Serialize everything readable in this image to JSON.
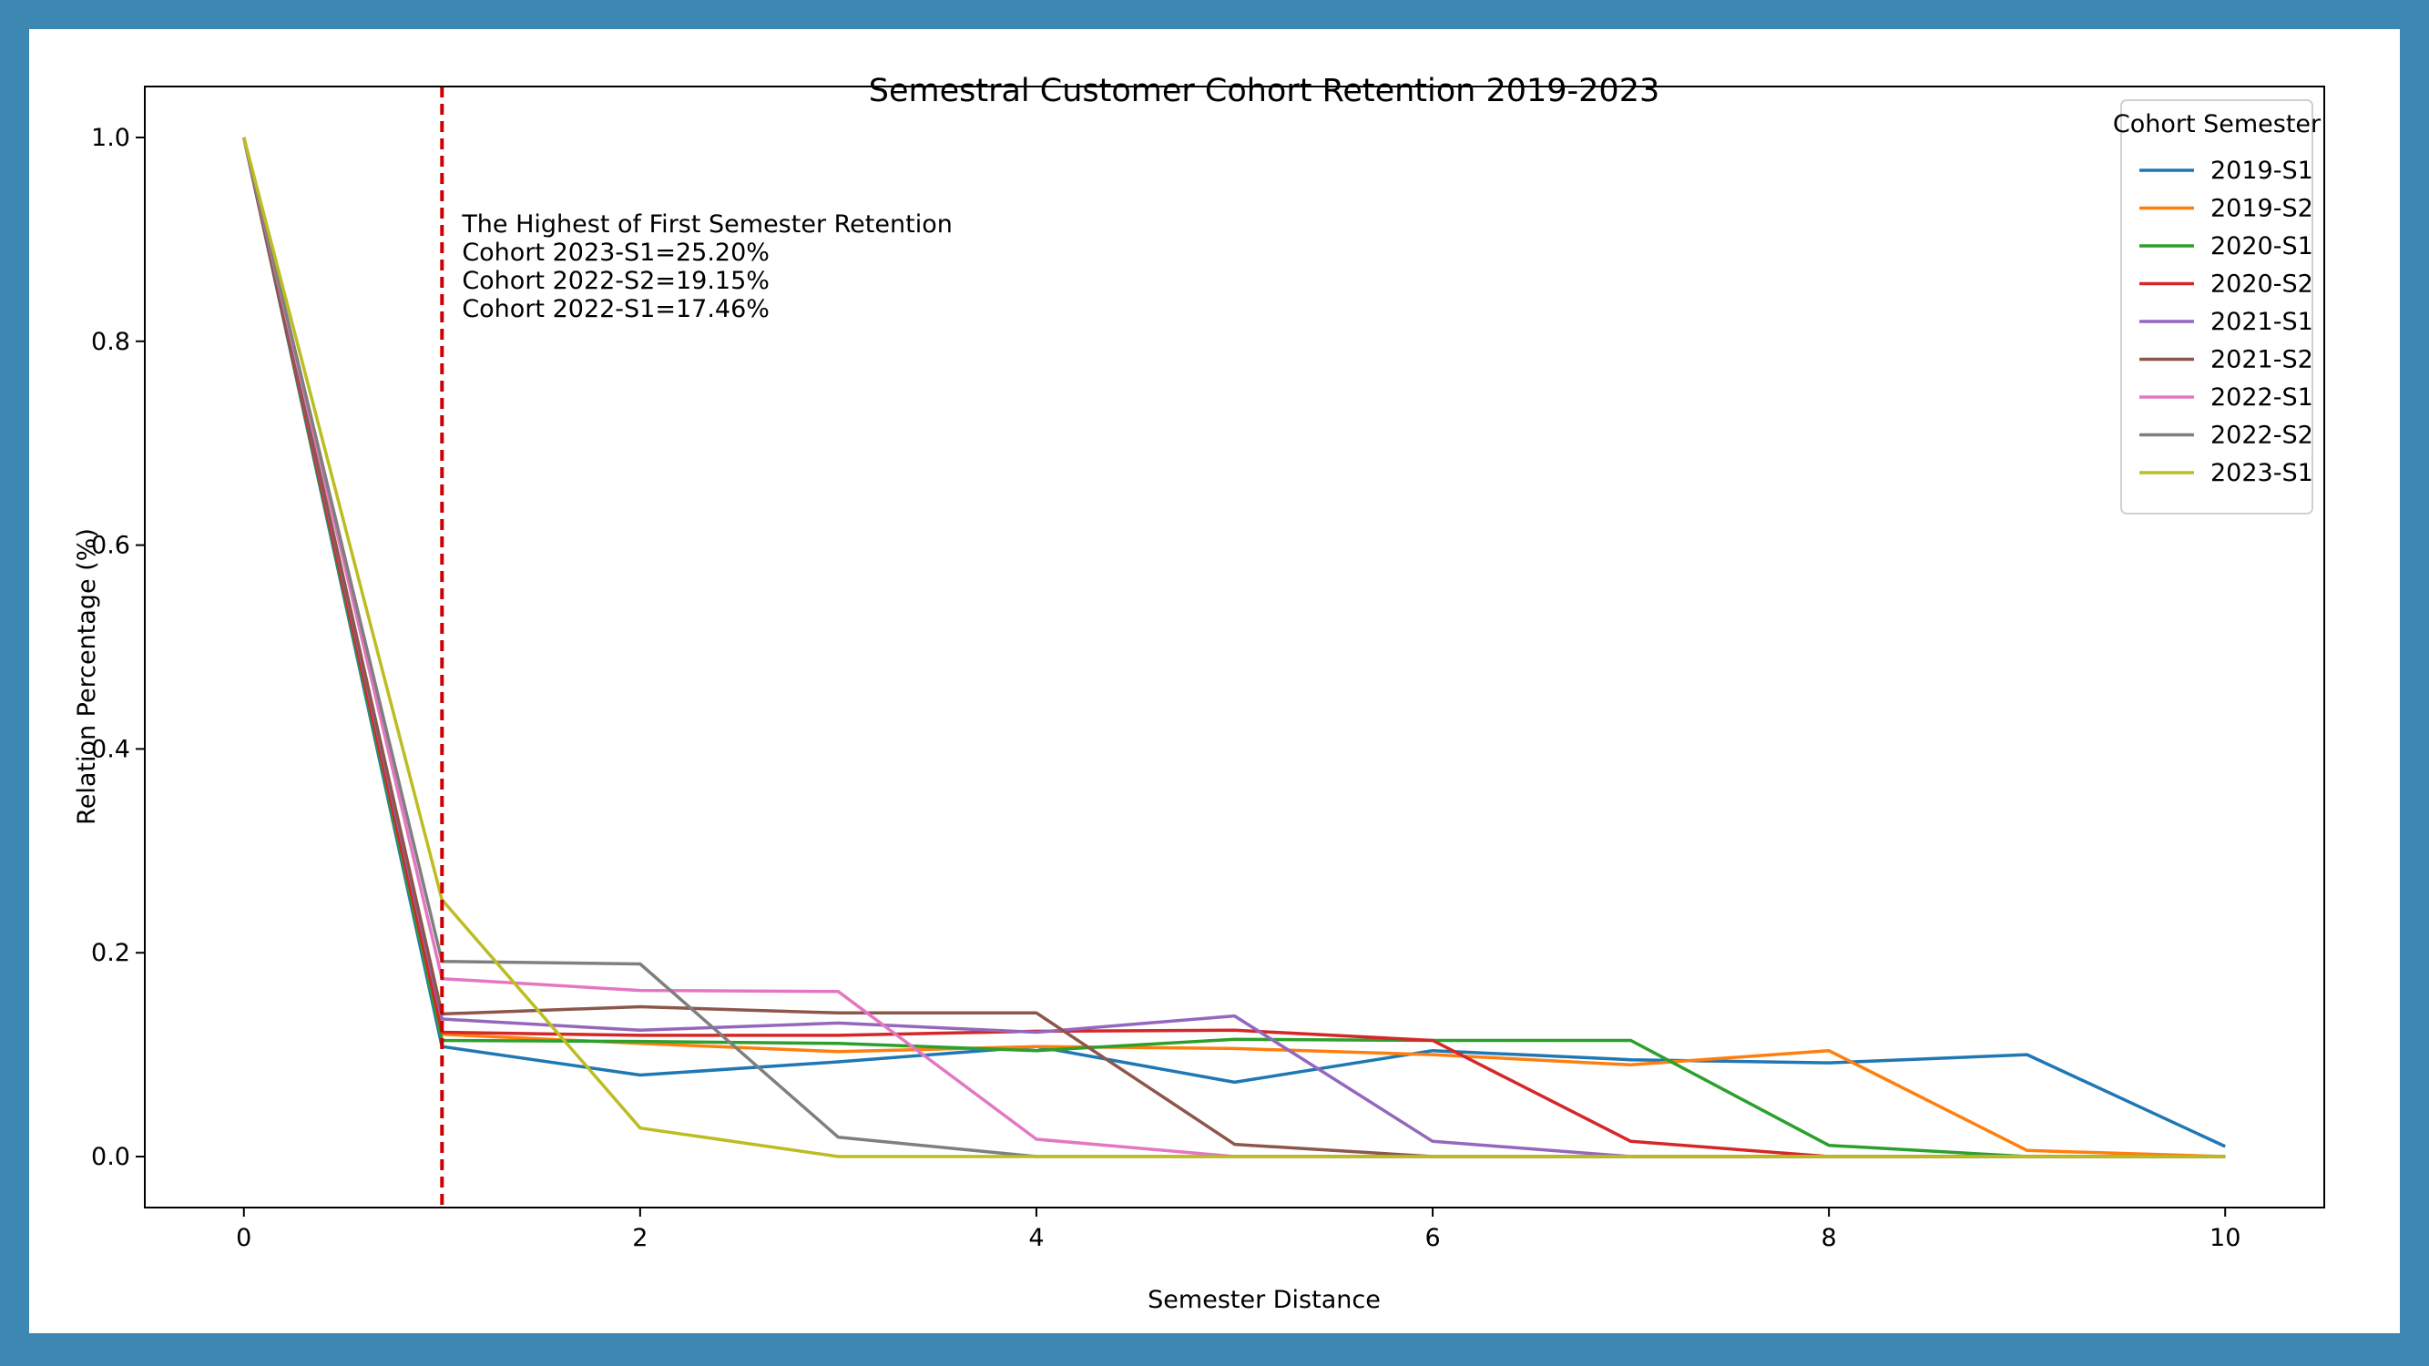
{
  "chart_data": {
    "type": "line",
    "title": "Semestral Customer Cohort Retention 2019-2023",
    "xlabel": "Semester Distance",
    "ylabel": "Relation Percentage (%)",
    "xlim": [
      -0.5,
      10.5
    ],
    "ylim": [
      -0.05,
      1.05
    ],
    "xticks": [
      0,
      2,
      4,
      6,
      8,
      10
    ],
    "yticks": [
      0.0,
      0.2,
      0.4,
      0.6,
      0.8,
      1.0
    ],
    "grid": false,
    "legend": {
      "title": "Cohort Semester",
      "placement": "top-right"
    },
    "x": [
      0,
      1,
      2,
      3,
      4,
      5,
      6,
      7,
      8,
      9,
      10
    ],
    "series": [
      {
        "name": "2019-S1",
        "color": "#1f77b4",
        "values": [
          1.0,
          0.108,
          0.08,
          0.093,
          0.108,
          0.073,
          0.104,
          0.095,
          0.092,
          0.1,
          0.01
        ]
      },
      {
        "name": "2019-S2",
        "color": "#ff7f0e",
        "values": [
          1.0,
          0.12,
          0.111,
          0.103,
          0.108,
          0.106,
          0.1,
          0.09,
          0.104,
          0.006,
          0.0
        ]
      },
      {
        "name": "2020-S1",
        "color": "#2ca02c",
        "values": [
          1.0,
          0.114,
          0.113,
          0.111,
          0.104,
          0.115,
          0.114,
          0.114,
          0.011,
          0.0,
          0.0
        ]
      },
      {
        "name": "2020-S2",
        "color": "#d62728",
        "values": [
          1.0,
          0.122,
          0.119,
          0.119,
          0.123,
          0.124,
          0.114,
          0.015,
          0.0,
          0.0,
          0.0
        ]
      },
      {
        "name": "2021-S1",
        "color": "#9467bd",
        "values": [
          1.0,
          0.135,
          0.124,
          0.131,
          0.122,
          0.138,
          0.015,
          0.0,
          0.0,
          0.0,
          0.0
        ]
      },
      {
        "name": "2021-S2",
        "color": "#8c564b",
        "values": [
          1.0,
          0.14,
          0.147,
          0.141,
          0.141,
          0.012,
          0.0,
          0.0,
          0.0,
          0.0,
          0.0
        ]
      },
      {
        "name": "2022-S1",
        "color": "#e377c2",
        "values": [
          1.0,
          0.1746,
          0.163,
          0.162,
          0.017,
          0.0,
          0.0,
          0.0,
          0.0,
          0.0,
          0.0
        ]
      },
      {
        "name": "2022-S2",
        "color": "#7f7f7f",
        "values": [
          1.0,
          0.1915,
          0.189,
          0.019,
          0.0,
          0.0,
          0.0,
          0.0,
          0.0,
          0.0,
          0.0
        ]
      },
      {
        "name": "2023-S1",
        "color": "#bcbd22",
        "values": [
          1.0,
          0.252,
          0.028,
          0.0,
          0.0,
          0.0,
          0.0,
          0.0,
          0.0,
          0.0,
          0.0
        ]
      }
    ],
    "reference_line": {
      "x": 1,
      "color": "#cc0000",
      "style": "dashed"
    },
    "annotation": {
      "lines": [
        "The Highest of First Semester Retention",
        "Cohort 2023-S1=25.20%",
        "Cohort 2022-S2=19.15%",
        "Cohort 2022-S1=17.46%"
      ]
    }
  }
}
